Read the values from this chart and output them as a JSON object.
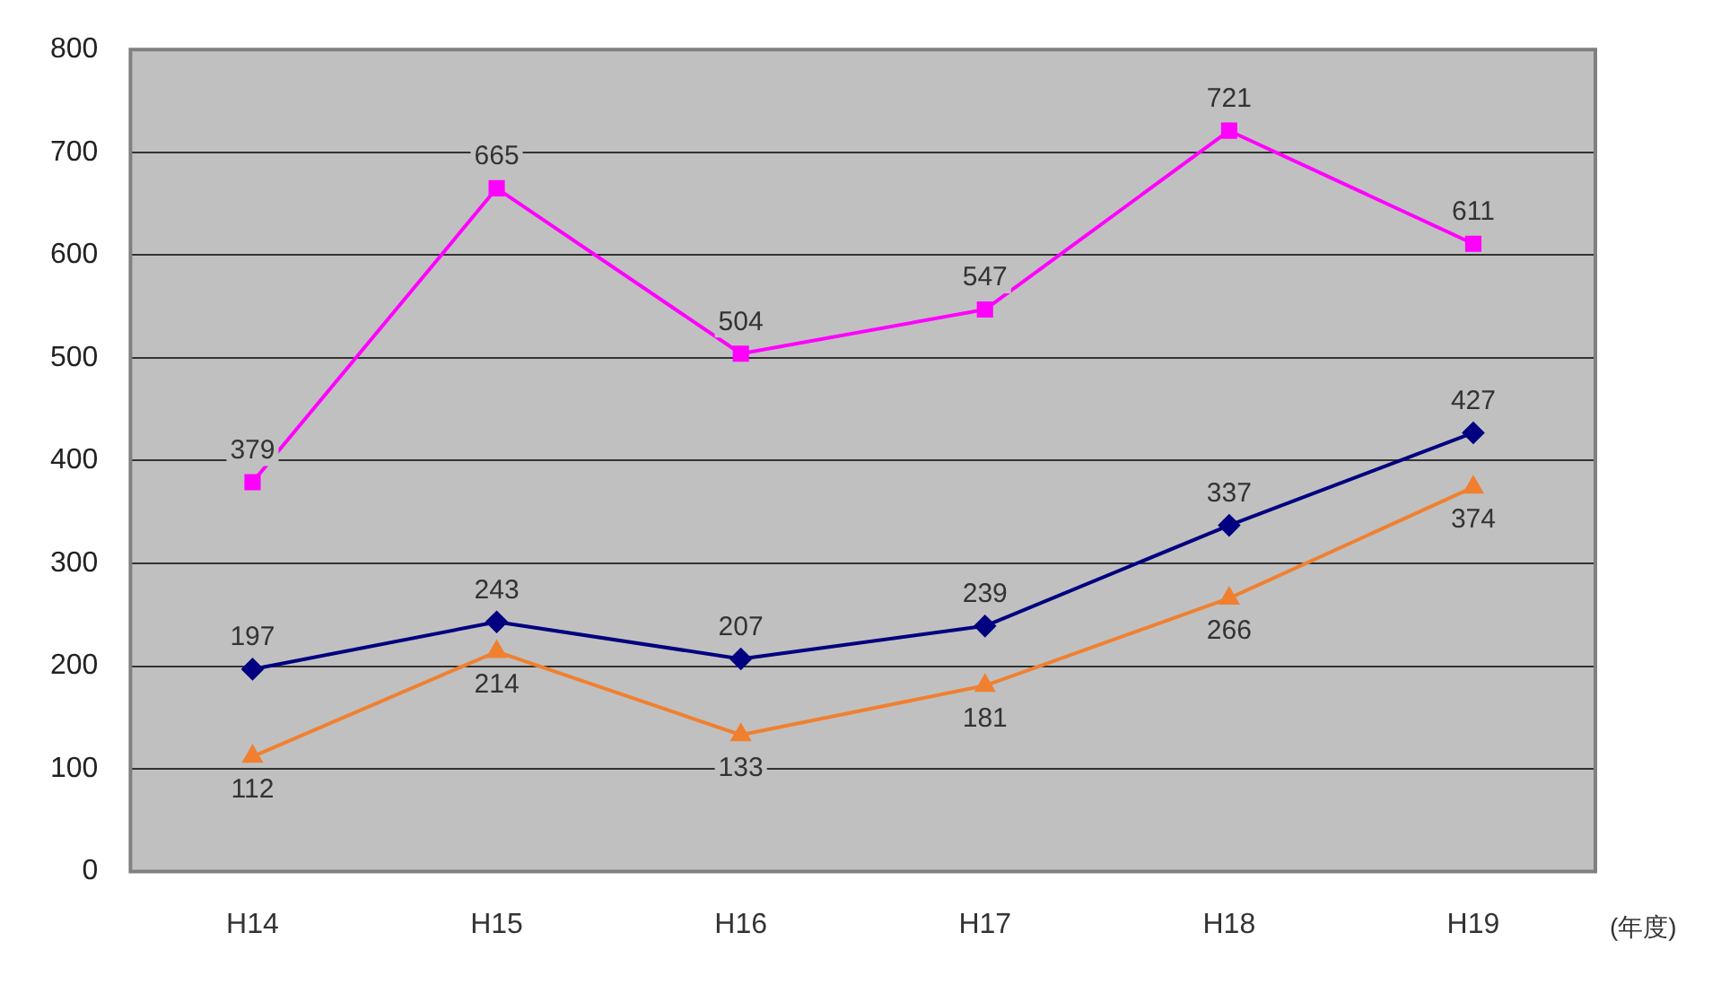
{
  "chart_data": {
    "type": "line",
    "xlabel": "(年度)",
    "categories": [
      "H14",
      "H15",
      "H16",
      "H17",
      "H18",
      "H19"
    ],
    "series": [
      {
        "color": "#ff00ff",
        "marker": "square",
        "values": [
          379,
          665,
          504,
          547,
          721,
          611
        ]
      },
      {
        "color": "#000080",
        "marker": "diamond",
        "values": [
          197,
          243,
          207,
          239,
          337,
          427
        ]
      },
      {
        "color": "#f08030",
        "marker": "triangle",
        "values": [
          112,
          214,
          133,
          181,
          266,
          374
        ]
      }
    ],
    "ylim": [
      0,
      800
    ],
    "yticks": [
      0,
      100,
      200,
      300,
      400,
      500,
      600,
      700,
      800
    ],
    "grid": "y",
    "data_labels": true,
    "legend": false
  }
}
